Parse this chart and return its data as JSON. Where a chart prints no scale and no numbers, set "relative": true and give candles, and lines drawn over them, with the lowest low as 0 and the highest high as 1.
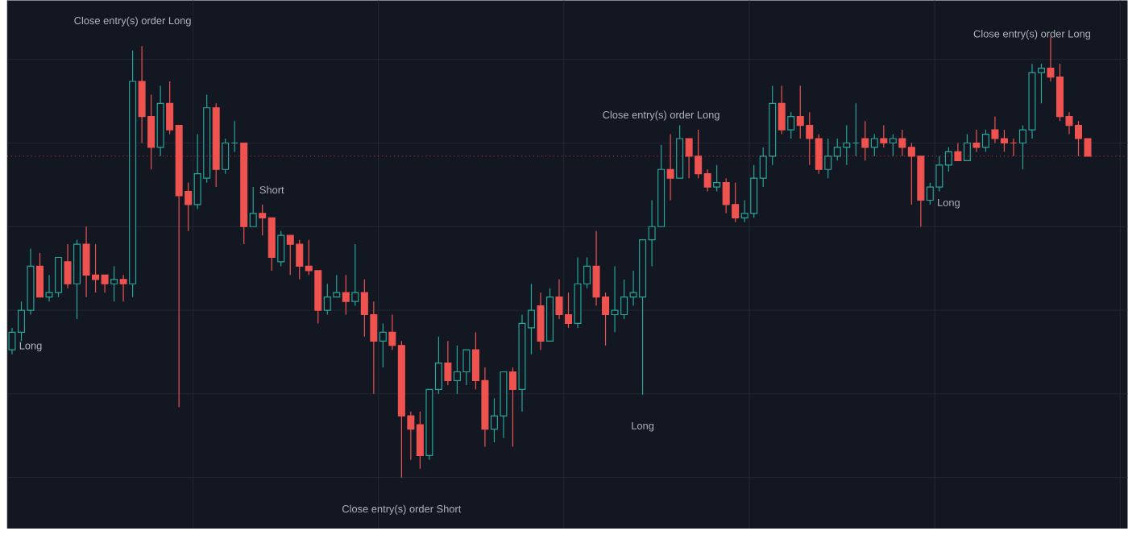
{
  "chart_data": {
    "type": "candlestick",
    "relative": true,
    "grid": true,
    "tick_labels": false,
    "categories": [
      null,
      null,
      null,
      null,
      null,
      null,
      null,
      null,
      null,
      null,
      null,
      null,
      null,
      null,
      null,
      null,
      null,
      null,
      null,
      null,
      null,
      null,
      null,
      null,
      null,
      null,
      null,
      null,
      null,
      null,
      null,
      null,
      null,
      null,
      null,
      null,
      null,
      null,
      null,
      null,
      null,
      null,
      null,
      null,
      null,
      null,
      null,
      null,
      null,
      null,
      null,
      null,
      null,
      null,
      null,
      null,
      null,
      null,
      null,
      null,
      null,
      null,
      null,
      null,
      null,
      null,
      null,
      null,
      null,
      null,
      null,
      null,
      null,
      null,
      null,
      null,
      null,
      null,
      null,
      null,
      null,
      null,
      null,
      null,
      null,
      null,
      null,
      null,
      null,
      null,
      null,
      null,
      null,
      null,
      null,
      null,
      null,
      null,
      null,
      null,
      null,
      null,
      null,
      null,
      null,
      null,
      null,
      null,
      null,
      null,
      null,
      null,
      null,
      null,
      null,
      null,
      null
    ],
    "ohlc": [
      [
        0.29,
        0.34,
        0.28,
        0.33
      ],
      [
        0.33,
        0.4,
        0.31,
        0.38
      ],
      [
        0.38,
        0.52,
        0.37,
        0.48
      ],
      [
        0.48,
        0.51,
        0.41,
        0.41
      ],
      [
        0.41,
        0.46,
        0.4,
        0.42
      ],
      [
        0.42,
        0.5,
        0.41,
        0.5
      ],
      [
        0.49,
        0.53,
        0.43,
        0.44
      ],
      [
        0.44,
        0.54,
        0.36,
        0.53
      ],
      [
        0.53,
        0.57,
        0.41,
        0.46
      ],
      [
        0.46,
        0.53,
        0.42,
        0.45
      ],
      [
        0.46,
        0.46,
        0.42,
        0.44
      ],
      [
        0.44,
        0.48,
        0.4,
        0.45
      ],
      [
        0.45,
        0.46,
        0.4,
        0.44
      ],
      [
        0.44,
        0.97,
        0.41,
        0.9
      ],
      [
        0.9,
        0.98,
        0.76,
        0.82
      ],
      [
        0.82,
        0.87,
        0.7,
        0.75
      ],
      [
        0.75,
        0.89,
        0.73,
        0.85
      ],
      [
        0.85,
        0.9,
        0.78,
        0.79
      ],
      [
        0.8,
        0.8,
        0.16,
        0.64
      ],
      [
        0.65,
        0.67,
        0.56,
        0.62
      ],
      [
        0.62,
        0.78,
        0.61,
        0.69
      ],
      [
        0.68,
        0.87,
        0.67,
        0.84
      ],
      [
        0.84,
        0.85,
        0.66,
        0.7
      ],
      [
        0.7,
        0.77,
        0.69,
        0.76
      ],
      [
        0.76,
        0.81,
        0.74,
        0.76
      ],
      [
        0.76,
        0.76,
        0.53,
        0.57
      ],
      [
        0.57,
        0.66,
        0.57,
        0.6
      ],
      [
        0.6,
        0.62,
        0.55,
        0.59
      ],
      [
        0.59,
        0.59,
        0.47,
        0.5
      ],
      [
        0.49,
        0.56,
        0.48,
        0.55
      ],
      [
        0.55,
        0.55,
        0.46,
        0.53
      ],
      [
        0.53,
        0.54,
        0.45,
        0.48
      ],
      [
        0.48,
        0.54,
        0.46,
        0.47
      ],
      [
        0.47,
        0.47,
        0.35,
        0.38
      ],
      [
        0.38,
        0.44,
        0.37,
        0.41
      ],
      [
        0.41,
        0.46,
        0.41,
        0.42
      ],
      [
        0.42,
        0.46,
        0.37,
        0.4
      ],
      [
        0.4,
        0.53,
        0.39,
        0.42
      ],
      [
        0.42,
        0.45,
        0.32,
        0.37
      ],
      [
        0.37,
        0.4,
        0.19,
        0.31
      ],
      [
        0.31,
        0.35,
        0.25,
        0.33
      ],
      [
        0.33,
        0.37,
        0.29,
        0.3
      ],
      [
        0.3,
        0.31,
        0,
        0.14
      ],
      [
        0.14,
        0.15,
        0.04,
        0.11
      ],
      [
        0.12,
        0.15,
        0.02,
        0.05
      ],
      [
        0.05,
        0.2,
        0.04,
        0.2
      ],
      [
        0.2,
        0.32,
        0.19,
        0.26
      ],
      [
        0.26,
        0.31,
        0.21,
        0.22
      ],
      [
        0.22,
        0.3,
        0.19,
        0.24
      ],
      [
        0.24,
        0.29,
        0.21,
        0.29
      ],
      [
        0.29,
        0.33,
        0.2,
        0.22
      ],
      [
        0.22,
        0.25,
        0.07,
        0.11
      ],
      [
        0.11,
        0.18,
        0.08,
        0.14
      ],
      [
        0.14,
        0.24,
        0.09,
        0.24
      ],
      [
        0.24,
        0.25,
        0.07,
        0.2
      ],
      [
        0.2,
        0.37,
        0.15,
        0.35
      ],
      [
        0.34,
        0.44,
        0.28,
        0.38
      ],
      [
        0.39,
        0.42,
        0.29,
        0.31
      ],
      [
        0.31,
        0.43,
        0.31,
        0.41
      ],
      [
        0.41,
        0.45,
        0.36,
        0.37
      ],
      [
        0.37,
        0.42,
        0.34,
        0.35
      ],
      [
        0.35,
        0.5,
        0.34,
        0.44
      ],
      [
        0.44,
        0.5,
        0.43,
        0.48
      ],
      [
        0.48,
        0.56,
        0.39,
        0.41
      ],
      [
        0.41,
        0.42,
        0.3,
        0.37
      ],
      [
        0.37,
        0.48,
        0.33,
        0.38
      ],
      [
        0.37,
        0.45,
        0.36,
        0.41
      ],
      [
        0.41,
        0.47,
        0.39,
        0.42
      ],
      [
        0.41,
        0.54,
        0.188,
        0.54
      ],
      [
        0.54,
        0.63,
        0.48,
        0.57
      ],
      [
        0.57,
        0.756,
        0.57,
        0.7
      ],
      [
        0.7,
        0.78,
        0.63,
        0.68
      ],
      [
        0.68,
        0.8,
        0.68,
        0.77
      ],
      [
        0.77,
        0.77,
        0.68,
        0.73
      ],
      [
        0.73,
        0.79,
        0.68,
        0.69
      ],
      [
        0.69,
        0.7,
        0.65,
        0.66
      ],
      [
        0.66,
        0.71,
        0.65,
        0.67
      ],
      [
        0.67,
        0.68,
        0.6,
        0.62
      ],
      [
        0.62,
        0.67,
        0.58,
        0.59
      ],
      [
        0.59,
        0.63,
        0.58,
        0.6
      ],
      [
        0.6,
        0.71,
        0.59,
        0.68
      ],
      [
        0.68,
        0.75,
        0.66,
        0.73
      ],
      [
        0.73,
        0.89,
        0.71,
        0.85
      ],
      [
        0.85,
        0.89,
        0.78,
        0.79
      ],
      [
        0.79,
        0.83,
        0.77,
        0.82
      ],
      [
        0.82,
        0.89,
        0.77,
        0.8
      ],
      [
        0.8,
        0.83,
        0.71,
        0.77
      ],
      [
        0.77,
        0.78,
        0.69,
        0.7
      ],
      [
        0.7,
        0.77,
        0.68,
        0.73
      ],
      [
        0.73,
        0.77,
        0.72,
        0.75
      ],
      [
        0.75,
        0.8,
        0.71,
        0.76
      ],
      [
        0.76,
        0.85,
        0.73,
        0.76
      ],
      [
        0.77,
        0.81,
        0.72,
        0.75
      ],
      [
        0.75,
        0.78,
        0.73,
        0.77
      ],
      [
        0.77,
        0.8,
        0.75,
        0.76
      ],
      [
        0.76,
        0.78,
        0.73,
        0.77
      ],
      [
        0.77,
        0.79,
        0.73,
        0.75
      ],
      [
        0.75,
        0.76,
        0.62,
        0.73
      ],
      [
        0.73,
        0.73,
        0.57,
        0.63
      ],
      [
        0.63,
        0.67,
        0.62,
        0.66
      ],
      [
        0.66,
        0.73,
        0.65,
        0.71
      ],
      [
        0.71,
        0.75,
        0.695,
        0.74
      ],
      [
        0.74,
        0.76,
        0.72,
        0.72
      ],
      [
        0.72,
        0.78,
        0.72,
        0.76
      ],
      [
        0.76,
        0.79,
        0.74,
        0.75
      ],
      [
        0.75,
        0.79,
        0.74,
        0.78
      ],
      [
        0.79,
        0.82,
        0.76,
        0.77
      ],
      [
        0.77,
        0.79,
        0.74,
        0.76
      ],
      [
        0.76,
        0.77,
        0.73,
        0.76
      ],
      [
        0.76,
        0.8,
        0.7,
        0.79
      ],
      [
        0.79,
        0.94,
        0.77,
        0.92
      ],
      [
        0.92,
        0.94,
        0.85,
        0.93
      ],
      [
        0.93,
        1,
        0.9,
        0.91
      ],
      [
        0.91,
        0.94,
        0.81,
        0.82
      ],
      [
        0.82,
        0.83,
        0.78,
        0.8
      ],
      [
        0.8,
        0.81,
        0.73,
        0.77
      ],
      [
        0.77,
        0.77,
        0.73,
        0.73
      ]
    ],
    "colors": [
      "#26a69a",
      "#26a69a",
      "#26a69a",
      "#ef5350",
      "#26a69a",
      "#26a69a",
      "#ef5350",
      "#26a69a",
      "#ef5350",
      "#ef5350",
      "#ef5350",
      "#26a69a",
      "#ef5350",
      "#26a69a",
      "#ef5350",
      "#ef5350",
      "#26a69a",
      "#ef5350",
      "#ef5350",
      "#ef5350",
      "#26a69a",
      "#26a69a",
      "#ef5350",
      "#26a69a",
      "#26a69a",
      "#ef5350",
      "#26a69a",
      "#ef5350",
      "#ef5350",
      "#26a69a",
      "#ef5350",
      "#ef5350",
      "#ef5350",
      "#ef5350",
      "#26a69a",
      "#26a69a",
      "#ef5350",
      "#26a69a",
      "#ef5350",
      "#ef5350",
      "#26a69a",
      "#ef5350",
      "#ef5350",
      "#ef5350",
      "#ef5350",
      "#26a69a",
      "#26a69a",
      "#ef5350",
      "#26a69a",
      "#26a69a",
      "#ef5350",
      "#ef5350",
      "#26a69a",
      "#26a69a",
      "#ef5350",
      "#26a69a",
      "#26a69a",
      "#ef5350",
      "#26a69a",
      "#ef5350",
      "#ef5350",
      "#26a69a",
      "#26a69a",
      "#ef5350",
      "#ef5350",
      "#26a69a",
      "#26a69a",
      "#26a69a",
      "#26a69a",
      "#26a69a",
      "#26a69a",
      "#ef5350",
      "#26a69a",
      "#ef5350",
      "#ef5350",
      "#ef5350",
      "#26a69a",
      "#ef5350",
      "#ef5350",
      "#26a69a",
      "#26a69a",
      "#26a69a",
      "#26a69a",
      "#ef5350",
      "#26a69a",
      "#ef5350",
      "#ef5350",
      "#ef5350",
      "#26a69a",
      "#26a69a",
      "#26a69a",
      "#26a69a",
      "#ef5350",
      "#26a69a",
      "#ef5350",
      "#26a69a",
      "#ef5350",
      "#ef5350",
      "#ef5350",
      "#26a69a",
      "#26a69a",
      "#26a69a",
      "#ef5350",
      "#26a69a",
      "#ef5350",
      "#26a69a",
      "#ef5350",
      "#ef5350",
      "#ef5350",
      "#26a69a",
      "#26a69a",
      "#26a69a",
      "#ef5350",
      "#ef5350",
      "#ef5350",
      "#ef5350",
      "#ef5350"
    ],
    "ref_lines": [
      {
        "axis": "y",
        "value": 0.73,
        "color": "#f23645",
        "line_style": "dotted"
      }
    ],
    "annotations": [
      {
        "text": "Close entry(s) order Long",
        "y": 0.97
      },
      {
        "text": "Long",
        "y": 0.37
      },
      {
        "text": "Short",
        "y": 0.59
      },
      {
        "text": "Close entry(s) order Short",
        "y": 0
      },
      {
        "text": "Long",
        "y": 0.188
      },
      {
        "text": "Close entry(s) order Long",
        "y": 0.756
      },
      {
        "text": "Long",
        "y": 0.695
      },
      {
        "text": "Close entry(s) order Long",
        "y": 0.94
      }
    ]
  }
}
